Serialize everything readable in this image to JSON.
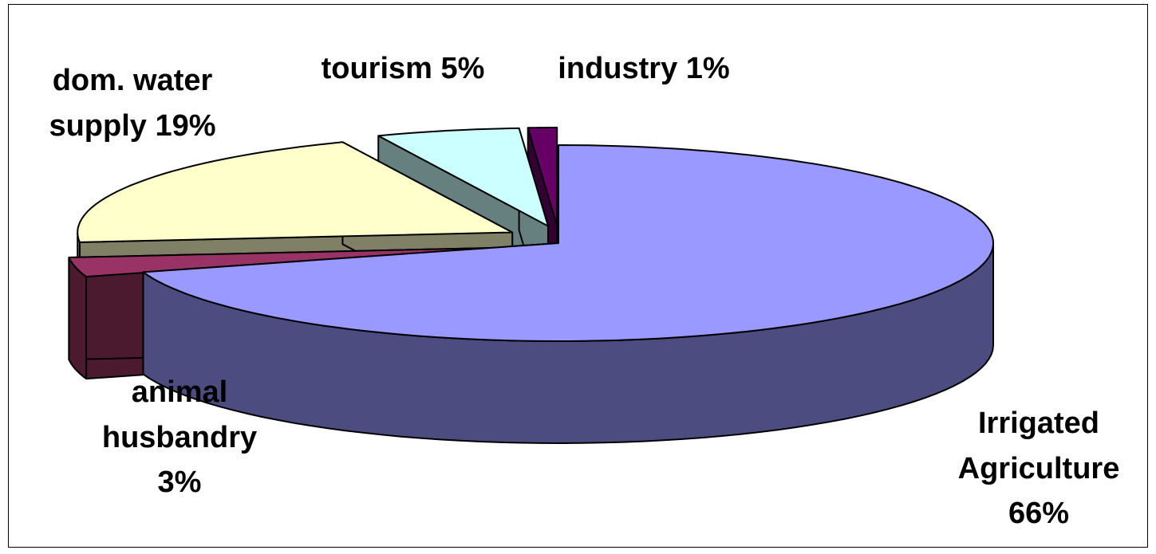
{
  "chart_data": {
    "type": "pie",
    "style": "3d-exploded",
    "slices": [
      {
        "name": "Irrigated Agriculture",
        "value": 66,
        "label_lines": [
          "Irrigated",
          "Agriculture",
          "66%"
        ],
        "top_color": "#9999ff",
        "side_color": "#4c4c80"
      },
      {
        "name": "animal husbandry",
        "value": 3,
        "label_lines": [
          "animal",
          "husbandry",
          "3%"
        ],
        "top_color": "#993366",
        "side_color": "#4c1a2e"
      },
      {
        "name": "dom. water supply",
        "value": 19,
        "label_lines": [
          "dom. water",
          "supply 19%"
        ],
        "top_color": "#ffffcc",
        "side_color": "#808066"
      },
      {
        "name": "tourism",
        "value": 5,
        "label_lines": [
          "tourism 5%"
        ],
        "top_color": "#ccffff",
        "side_color": "#668080"
      },
      {
        "name": "industry",
        "value": 1,
        "label_lines": [
          "industry 1%"
        ],
        "top_color": "#660066",
        "side_color": "#330033"
      }
    ]
  }
}
